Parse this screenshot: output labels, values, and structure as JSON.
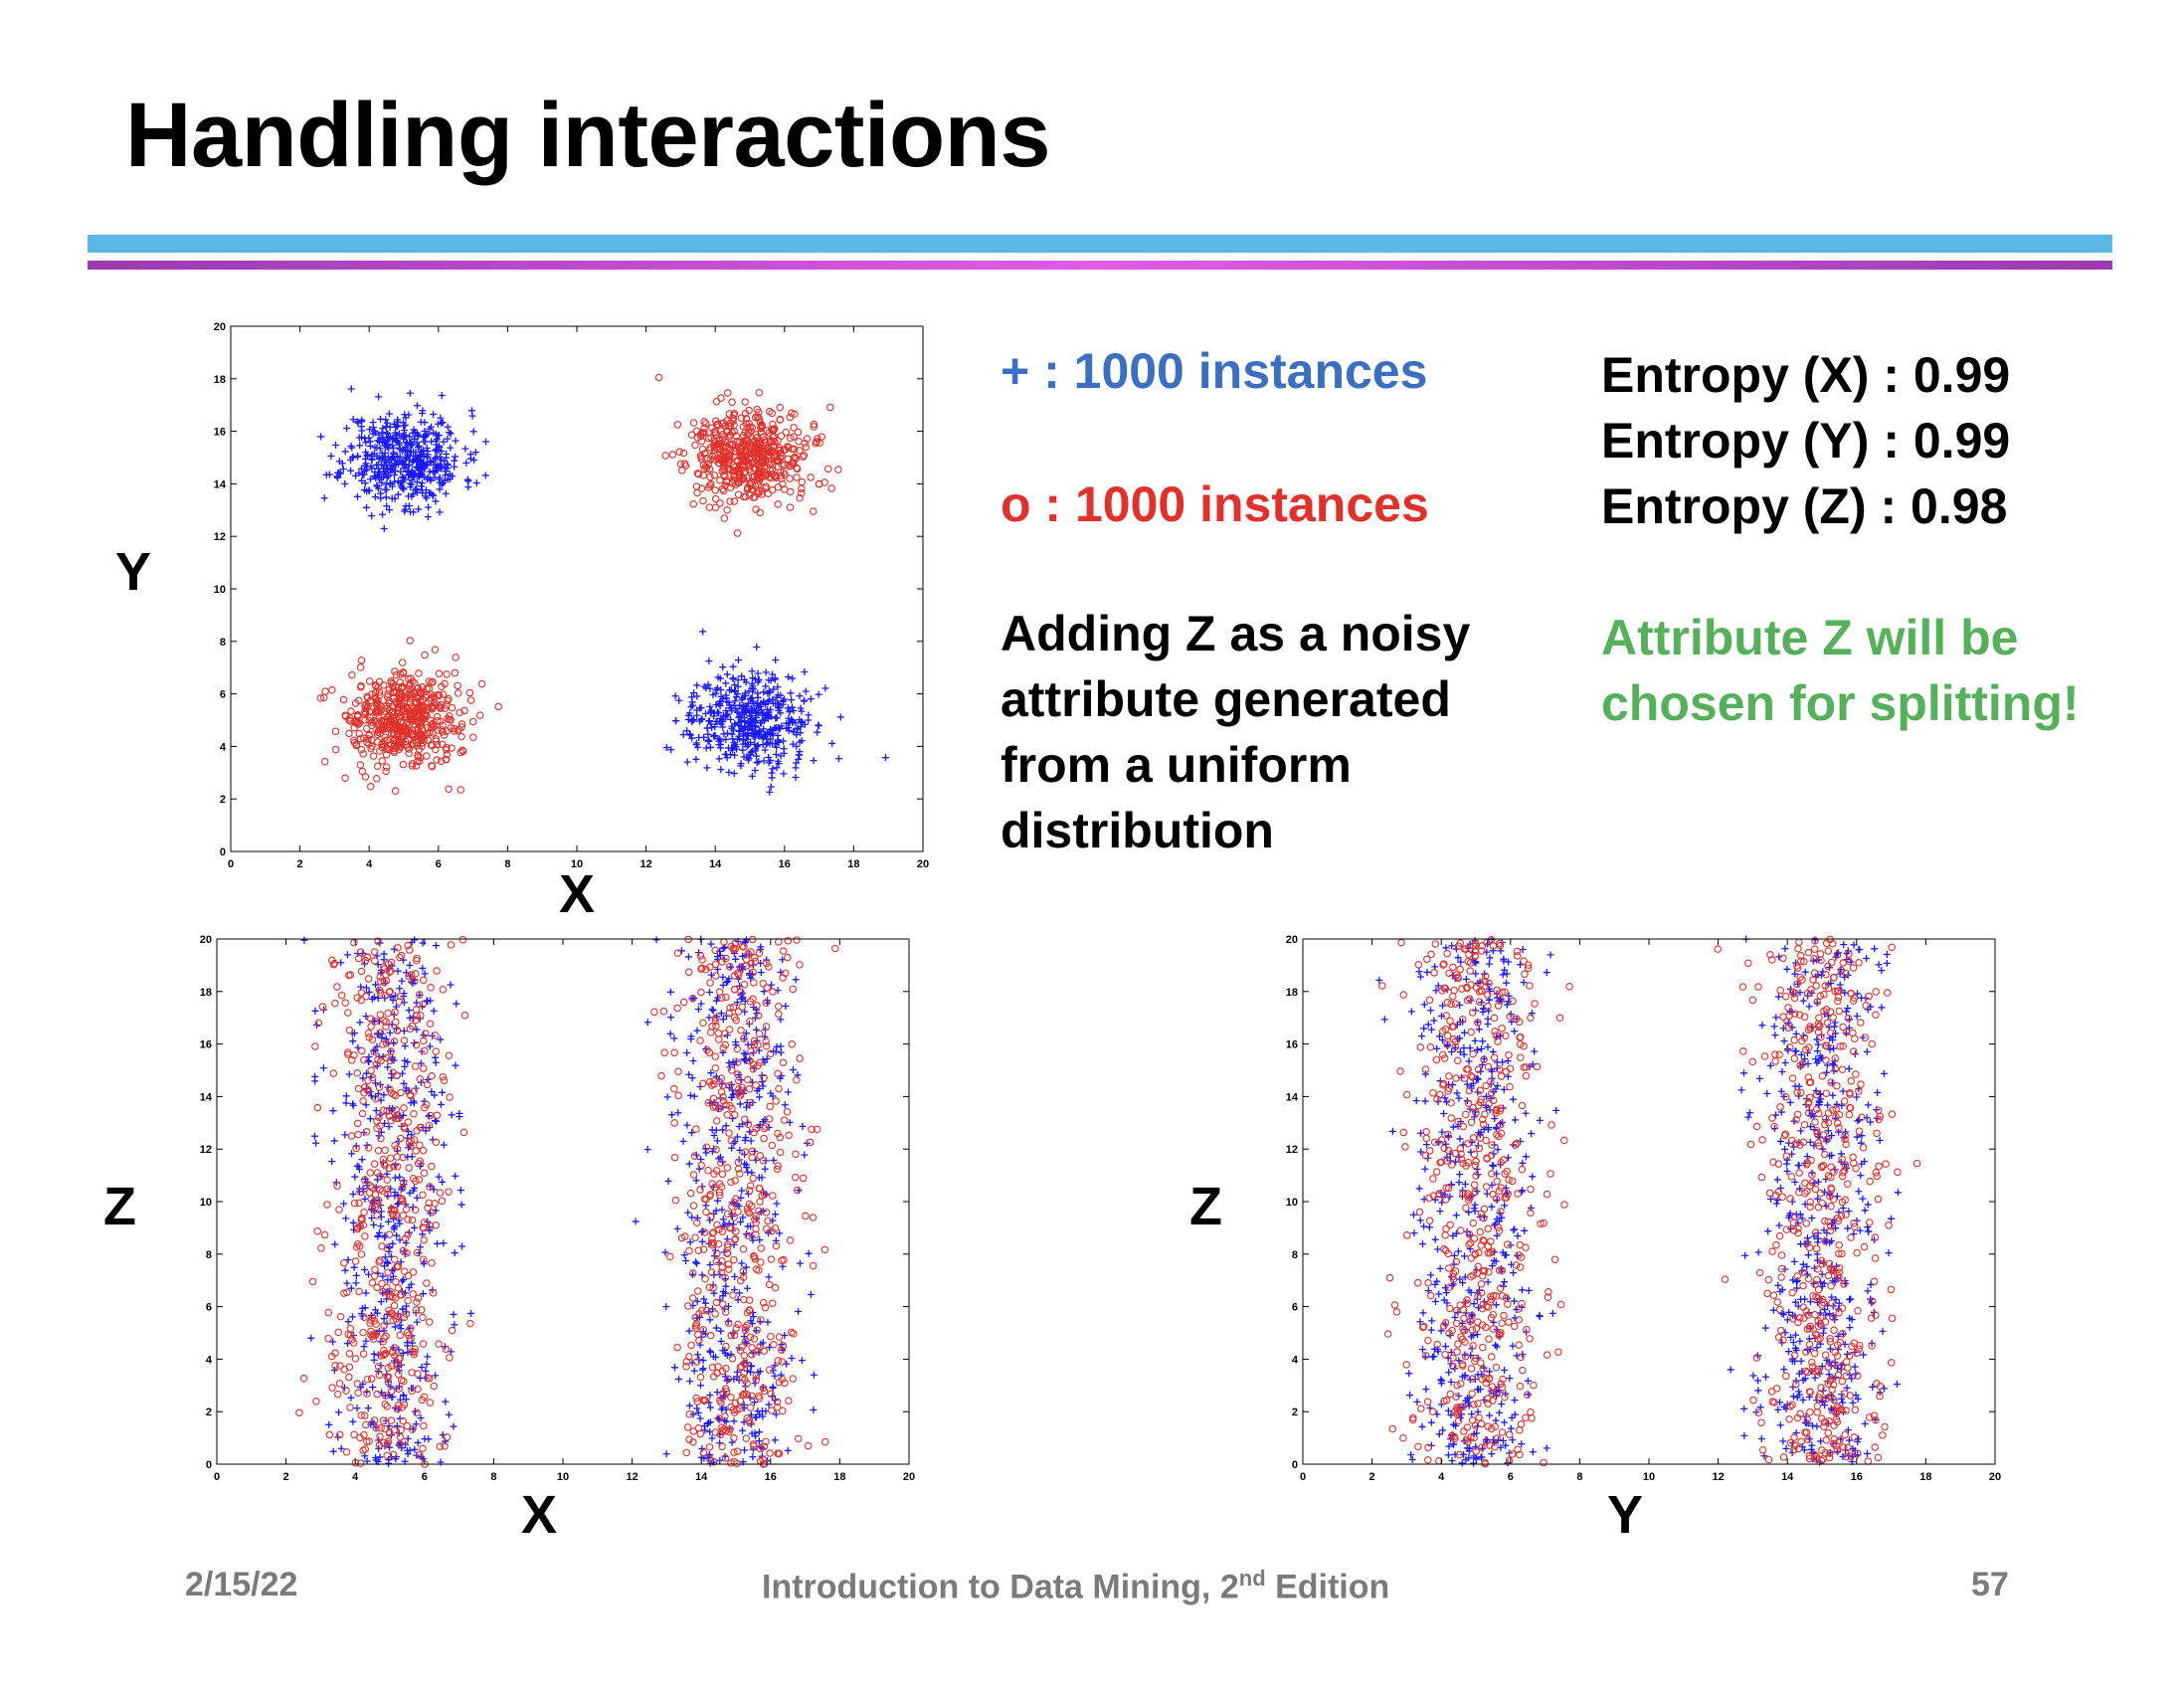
{
  "slide": {
    "title": "Handling interactions",
    "legend_plus": "+ : 1000 instances",
    "legend_o": "o : 1000 instances",
    "noise_lines": [
      "Adding Z as a noisy",
      "attribute generated",
      "from a uniform",
      "distribution"
    ],
    "entropy_lines": [
      "Entropy (X) : 0.99",
      "Entropy (Y) : 0.99",
      "Entropy (Z) : 0.98"
    ],
    "conclusion_lines": [
      "Attribute Z will be",
      "chosen for splitting!"
    ],
    "footer": {
      "date": "2/15/22",
      "title_main": "Introduction to Data Mining, 2",
      "title_sup": "nd",
      "title_end": " Edition",
      "page": "57"
    },
    "labels": {
      "p1_y": "Y",
      "p1_x": "X",
      "p2_y": "Z",
      "p2_x": "X",
      "p3_y": "Z",
      "p3_x": "Y"
    }
  },
  "colors": {
    "plus": "#1a1aff",
    "o": "#e2302a",
    "rule_blue": "#5bb8e6",
    "rule_magenta": "#c04fd0",
    "green": "#55b05a"
  },
  "chart_data": [
    {
      "type": "scatter",
      "title": "",
      "xlabel": "X",
      "ylabel": "Y",
      "xlim": [
        0,
        20
      ],
      "ylim": [
        0,
        20
      ],
      "xticks": [
        0,
        2,
        4,
        6,
        8,
        10,
        12,
        14,
        16,
        18,
        20
      ],
      "yticks": [
        0,
        2,
        4,
        6,
        8,
        10,
        12,
        14,
        16,
        18,
        20
      ],
      "series": [
        {
          "name": "+",
          "marker": "plus",
          "count": 1000,
          "clusters": [
            {
              "cx": 5,
              "cy": 15,
              "sx": 0.85,
              "sy": 0.9
            },
            {
              "cx": 15,
              "cy": 5,
              "sx": 0.85,
              "sy": 0.9
            }
          ]
        },
        {
          "name": "o",
          "marker": "circle",
          "count": 1000,
          "clusters": [
            {
              "cx": 15,
              "cy": 15,
              "sx": 0.85,
              "sy": 0.9
            },
            {
              "cx": 5,
              "cy": 5,
              "sx": 0.85,
              "sy": 0.9
            }
          ]
        }
      ]
    },
    {
      "type": "scatter",
      "title": "",
      "xlabel": "X",
      "ylabel": "Z",
      "xlim": [
        0,
        20
      ],
      "ylim": [
        0,
        20
      ],
      "xticks": [
        0,
        2,
        4,
        6,
        8,
        10,
        12,
        14,
        16,
        18,
        20
      ],
      "yticks": [
        0,
        2,
        4,
        6,
        8,
        10,
        12,
        14,
        16,
        18,
        20
      ],
      "series": [
        {
          "name": "+",
          "marker": "plus",
          "count": 1000,
          "x_clusters": [
            {
              "cx": 5,
              "sx": 0.85
            },
            {
              "cx": 15,
              "sx": 0.85
            }
          ],
          "z": "uniform 0-20"
        },
        {
          "name": "o",
          "marker": "circle",
          "count": 1000,
          "x_clusters": [
            {
              "cx": 5,
              "sx": 0.85
            },
            {
              "cx": 15,
              "sx": 0.85
            }
          ],
          "z": "uniform 0-20"
        }
      ]
    },
    {
      "type": "scatter",
      "title": "",
      "xlabel": "Y",
      "ylabel": "Z",
      "xlim": [
        0,
        20
      ],
      "ylim": [
        0,
        20
      ],
      "xticks": [
        0,
        2,
        4,
        6,
        8,
        10,
        12,
        14,
        16,
        18,
        20
      ],
      "yticks": [
        0,
        2,
        4,
        6,
        8,
        10,
        12,
        14,
        16,
        18,
        20
      ],
      "series": [
        {
          "name": "+",
          "marker": "plus",
          "count": 1000,
          "x_clusters": [
            {
              "cx": 5,
              "sx": 0.9
            },
            {
              "cx": 15,
              "sx": 0.9
            }
          ],
          "z": "uniform 0-20"
        },
        {
          "name": "o",
          "marker": "circle",
          "count": 1000,
          "x_clusters": [
            {
              "cx": 5,
              "sx": 0.9
            },
            {
              "cx": 15,
              "sx": 0.9
            }
          ],
          "z": "uniform 0-20"
        }
      ]
    }
  ]
}
